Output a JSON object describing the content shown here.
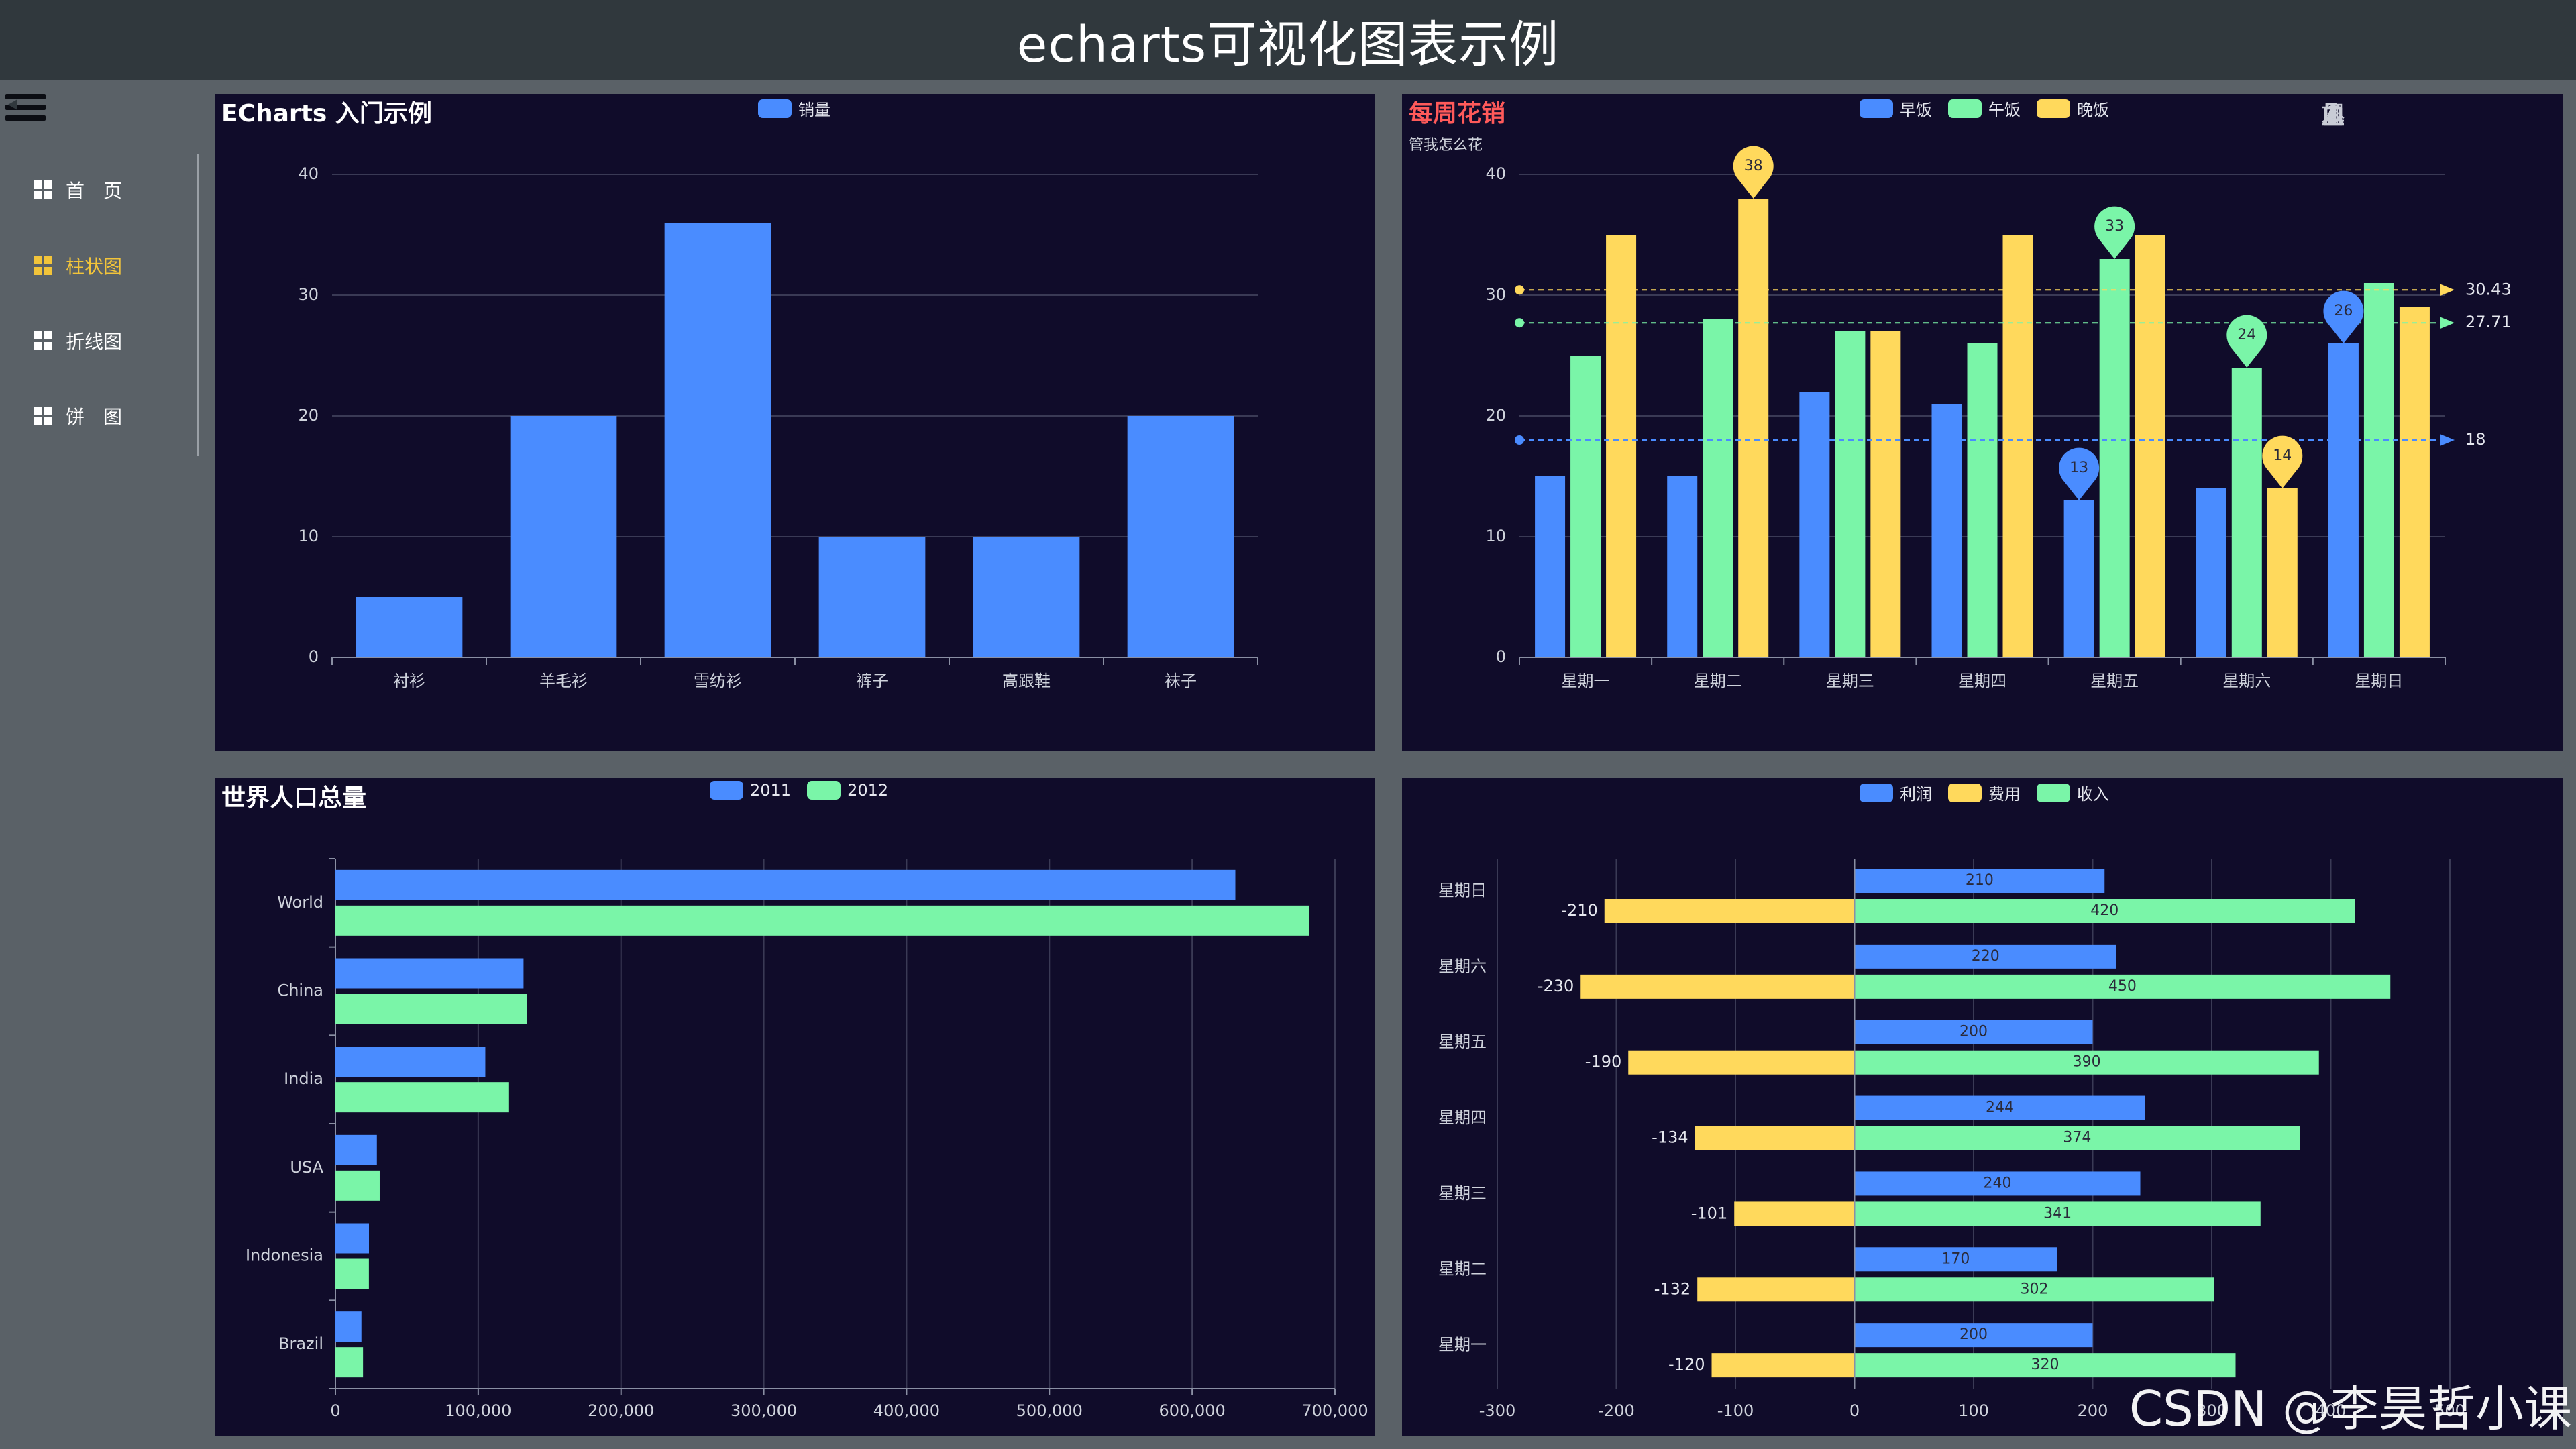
{
  "page": {
    "title": "echarts可视化图表示例",
    "watermark": "CSDN @李昊哲小课"
  },
  "sidebar": {
    "items": [
      {
        "label": "首　页",
        "active": false
      },
      {
        "label": "柱状图",
        "active": true
      },
      {
        "label": "折线图",
        "active": false
      },
      {
        "label": "饼　图",
        "active": false
      }
    ]
  },
  "colors": {
    "blue": "#4a8cff",
    "green": "#7af5a8",
    "yellow": "#ffd95c",
    "panel": "#100c2a",
    "accent": "#f2c43a",
    "red_title": "#ff5a5a"
  },
  "chart_data": [
    {
      "type": "bar",
      "title": "ECharts 入门示例",
      "legend": [
        "销量"
      ],
      "categories": [
        "衬衫",
        "羊毛衫",
        "雪纺衫",
        "裤子",
        "高跟鞋",
        "袜子"
      ],
      "series": [
        {
          "name": "销量",
          "values": [
            5,
            20,
            36,
            10,
            10,
            20
          ]
        }
      ],
      "yticks": [
        "0",
        "10",
        "20",
        "30",
        "40"
      ],
      "ylim": [
        0,
        40
      ],
      "grid": true
    },
    {
      "type": "bar",
      "title": "每周花销",
      "subtitle": "管我怎么花",
      "legend": [
        "早饭",
        "午饭",
        "晚饭"
      ],
      "categories": [
        "星期一",
        "星期二",
        "星期三",
        "星期四",
        "星期五",
        "星期六",
        "星期日"
      ],
      "series": [
        {
          "name": "早饭",
          "values": [
            15,
            15,
            22,
            21,
            13,
            14,
            26
          ]
        },
        {
          "name": "午饭",
          "values": [
            25,
            28,
            27,
            26,
            33,
            24,
            31
          ]
        },
        {
          "name": "晚饭",
          "values": [
            35,
            38,
            27,
            35,
            35,
            14,
            29
          ]
        }
      ],
      "mark_points": [
        {
          "series": 0,
          "index": 4,
          "label": "13"
        },
        {
          "series": 0,
          "index": 6,
          "label": "26"
        },
        {
          "series": 1,
          "index": 4,
          "label": "33"
        },
        {
          "series": 1,
          "index": 5,
          "label": "24"
        },
        {
          "series": 2,
          "index": 1,
          "label": "38"
        },
        {
          "series": 2,
          "index": 5,
          "label": "14"
        }
      ],
      "mark_lines": [
        {
          "series": 2,
          "value": 30.43,
          "label": "30.43"
        },
        {
          "series": 1,
          "value": 27.71,
          "label": "27.71"
        },
        {
          "series": 0,
          "value": 18,
          "label": "18"
        }
      ],
      "yticks": [
        "0",
        "10",
        "20",
        "30",
        "40"
      ],
      "ylim": [
        0,
        40
      ],
      "grid": true,
      "toolbox": [
        "download-icon",
        "data-view-icon",
        "restore-icon",
        "zoom-icon",
        "zoom-reset-icon",
        "line-icon",
        "bar-icon"
      ]
    },
    {
      "type": "bar",
      "orientation": "horizontal",
      "title": "世界人口总量",
      "legend": [
        "2011",
        "2012"
      ],
      "categories": [
        "World",
        "China",
        "India",
        "USA",
        "Indonesia",
        "Brazil"
      ],
      "series": [
        {
          "name": "2011",
          "values": [
            630230,
            131744,
            104970,
            29034,
            23489,
            18203
          ]
        },
        {
          "name": "2012",
          "values": [
            681807,
            134141,
            121594,
            31000,
            23438,
            19325
          ]
        }
      ],
      "xticks": [
        "0",
        "100,000",
        "200,000",
        "300,000",
        "400,000",
        "500,000",
        "600,000",
        "700,000"
      ],
      "xlim": [
        0,
        700000
      ],
      "grid": true
    },
    {
      "type": "bar",
      "orientation": "horizontal",
      "title": "",
      "legend": [
        "利润",
        "费用",
        "收入"
      ],
      "categories": [
        "星期日",
        "星期六",
        "星期五",
        "星期四",
        "星期三",
        "星期二",
        "星期一"
      ],
      "series": [
        {
          "name": "利润",
          "values": [
            210,
            220,
            200,
            244,
            240,
            170,
            200
          ]
        },
        {
          "name": "费用",
          "values": [
            -210,
            -230,
            -190,
            -134,
            -101,
            -132,
            -120
          ]
        },
        {
          "name": "收入",
          "values": [
            420,
            450,
            390,
            374,
            341,
            302,
            320
          ]
        }
      ],
      "xticks": [
        "-300",
        "-200",
        "-100",
        "0",
        "100",
        "200",
        "300",
        "400",
        "500"
      ],
      "xlim": [
        -300,
        500
      ],
      "grid": true
    }
  ]
}
